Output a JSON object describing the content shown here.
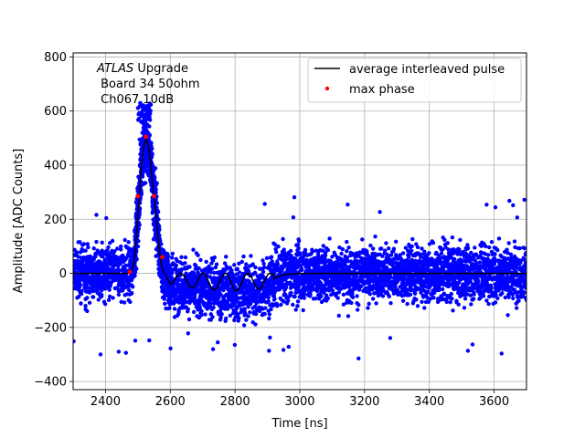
{
  "chart_data": {
    "type": "scatter",
    "xlabel": "Time [ns]",
    "ylabel": "Amplitude [ADC Counts]",
    "xlim": [
      2300,
      3700
    ],
    "ylim": [
      -430,
      815
    ],
    "x_ticks": [
      2400,
      2600,
      2800,
      3000,
      3200,
      3400,
      3600
    ],
    "y_ticks": [
      -400,
      -200,
      0,
      200,
      400,
      600,
      800
    ],
    "grid": true,
    "legend_position": "top-right",
    "annotation": {
      "italic": "ATLAS",
      "line1_rest": " Upgrade",
      "line2": " Board 34 50ohm",
      "line3": " Ch067 10dB"
    },
    "series": [
      {
        "name": "average interleaved pulse",
        "kind": "line",
        "color": "#000000",
        "x": [
          2300,
          2470,
          2480,
          2488,
          2495,
          2500,
          2505,
          2510,
          2515,
          2520,
          2525,
          2530,
          2535,
          2540,
          2545,
          2550,
          2555,
          2560,
          2565,
          2570,
          2575,
          2580,
          2600,
          2700,
          2800,
          2900,
          2920,
          2950,
          3000,
          3700
        ],
        "y": [
          0,
          0,
          5,
          40,
          130,
          220,
          300,
          380,
          440,
          480,
          495,
          485,
          450,
          400,
          330,
          280,
          230,
          160,
          100,
          50,
          20,
          5,
          -40,
          -60,
          -65,
          -55,
          -20,
          -5,
          0,
          0
        ]
      },
      {
        "name": "",
        "kind": "scatter",
        "color": "#0000ff",
        "x_range": [
          2300,
          3700
        ],
        "baseline_band": [
          -230,
          230
        ],
        "outlier_band": [
          -330,
          290
        ],
        "pulse_band_peak": [
          620,
          280
        ],
        "note_peak_region": [
          2480,
          2600
        ]
      },
      {
        "name": "max phase",
        "kind": "scatter",
        "color": "#ff0000",
        "x": [
          2475,
          2500,
          2525,
          2550,
          2575
        ],
        "y": [
          5,
          285,
          505,
          285,
          60
        ]
      }
    ]
  }
}
